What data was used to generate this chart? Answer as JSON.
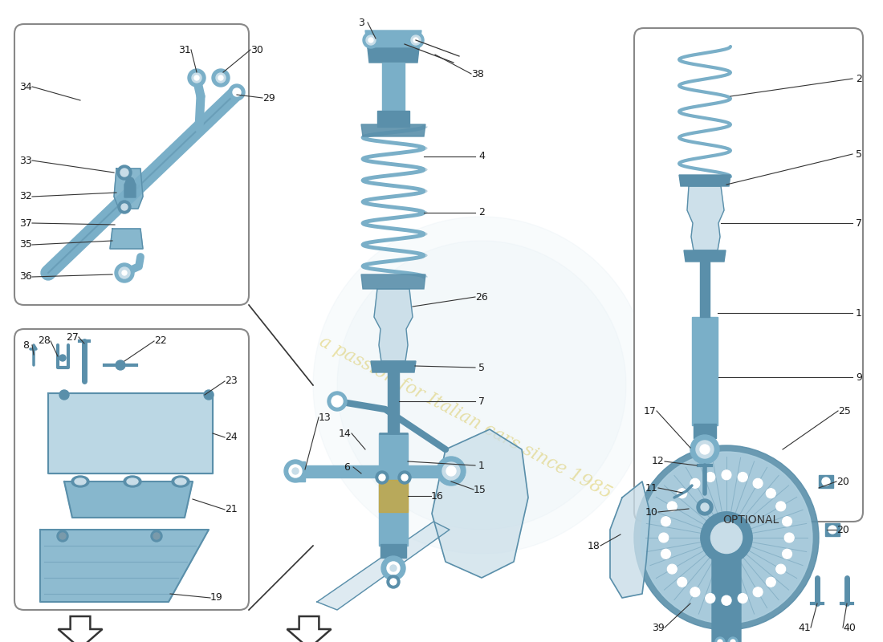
{
  "bg": "#ffffff",
  "pc": "#7aafc8",
  "pcd": "#5a8faa",
  "pcl": "#afd0e0",
  "pcc": "#c8dde8",
  "lc": "#1a1a1a",
  "ac": "#333333",
  "wm_color": "#e8d878",
  "optional": "OPTIONAL",
  "figw": 11.0,
  "figh": 8.0,
  "dpi": 100
}
